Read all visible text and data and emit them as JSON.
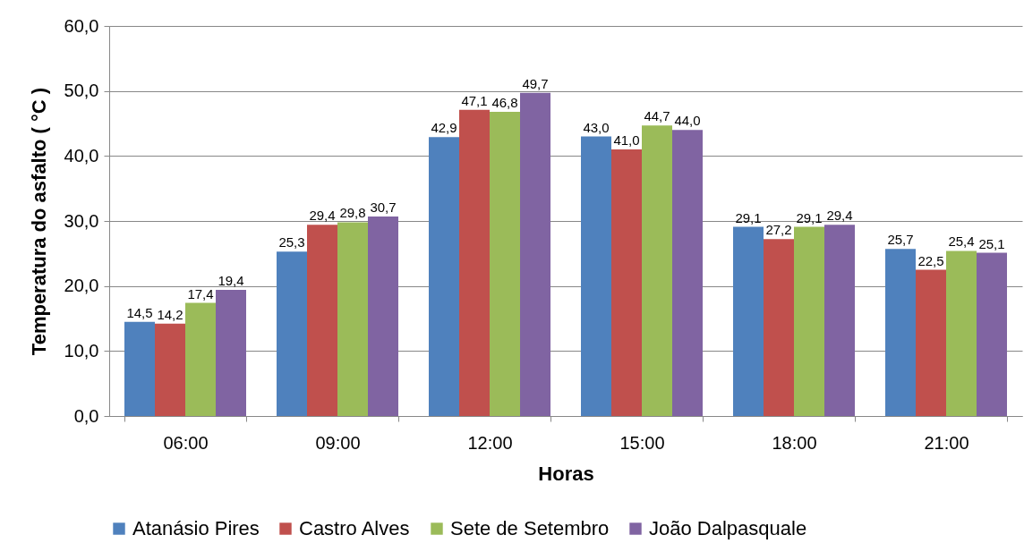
{
  "chart_data": {
    "type": "bar",
    "xlabel": "Horas",
    "ylabel": "Temperatura do asfalto ( °C )",
    "categories": [
      "06:00",
      "09:00",
      "12:00",
      "15:00",
      "18:00",
      "21:00"
    ],
    "series": [
      {
        "name": "Atanásio Pires",
        "color": "#4f81bd",
        "values": [
          14.5,
          25.3,
          42.9,
          43.0,
          29.1,
          25.7
        ],
        "value_labels": [
          "14,5",
          "25,3",
          "42,9",
          "43,0",
          "29,1",
          "25,7"
        ]
      },
      {
        "name": "Castro Alves",
        "color": "#c0504d",
        "values": [
          14.2,
          29.4,
          47.1,
          41.0,
          27.2,
          22.5
        ],
        "value_labels": [
          "14,2",
          "29,4",
          "47,1",
          "41,0",
          "27,2",
          "22,5"
        ]
      },
      {
        "name": "Sete de Setembro",
        "color": "#9bbb59",
        "values": [
          17.4,
          29.8,
          46.8,
          44.7,
          29.1,
          25.4
        ],
        "value_labels": [
          "17,4",
          "29,8",
          "46,8",
          "44,7",
          "29,1",
          "25,4"
        ]
      },
      {
        "name": "João Dalpasquale",
        "color": "#8064a2",
        "values": [
          19.4,
          30.7,
          49.7,
          44.0,
          29.4,
          25.1
        ],
        "value_labels": [
          "19,4",
          "30,7",
          "49,7",
          "44,0",
          "29,4",
          "25,1"
        ]
      }
    ],
    "ylim": [
      0,
      60
    ],
    "yticks": [
      {
        "value": 0,
        "label": "0,0"
      },
      {
        "value": 10,
        "label": "10,0"
      },
      {
        "value": 20,
        "label": "20,0"
      },
      {
        "value": 30,
        "label": "30,0"
      },
      {
        "value": 40,
        "label": "40,0"
      },
      {
        "value": 50,
        "label": "50,0"
      },
      {
        "value": 60,
        "label": "60,0"
      }
    ],
    "grid": "y",
    "legend": "bottom"
  }
}
